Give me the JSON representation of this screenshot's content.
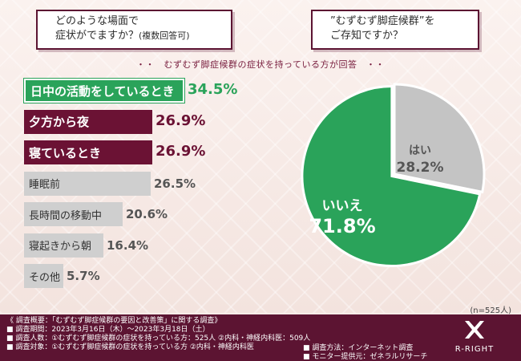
{
  "questions": {
    "q1_line1": "どのような場面で",
    "q1_line2": "症状がでますか？",
    "q1_note": "(複数回答可)",
    "q2_line1": "”むずむず脚症候群”を",
    "q2_line2": "ご存知ですか？"
  },
  "subtitle": "・・　むずむず脚症候群の症状を持っている方が回答　・・",
  "sample": "(n=525人)",
  "colors": {
    "accent": "#6b1234",
    "green": "#2aa35a",
    "gray": "#cfcfcf"
  },
  "chart_data": [
    {
      "type": "bar",
      "orientation": "horizontal",
      "categories": [
        "日中の活動をしているとき",
        "夕方から夜",
        "寝ているとき",
        "睡眠前",
        "長時間の移動中",
        "寝起きから朝",
        "その他"
      ],
      "values": [
        34.5,
        26.9,
        26.9,
        26.5,
        20.6,
        16.4,
        5.7
      ],
      "labels": [
        "34.5%",
        "26.9%",
        "26.9%",
        "26.5%",
        "20.6%",
        "16.4%",
        "5.7%"
      ],
      "styles": [
        "green",
        "dark",
        "dark",
        "gray",
        "gray",
        "gray",
        "gray"
      ]
    },
    {
      "type": "pie",
      "categories": [
        "はい",
        "いいえ"
      ],
      "values": [
        28.2,
        71.8
      ],
      "labels": [
        "28.2%",
        "71.8%"
      ],
      "colors": [
        "#c4c4c4",
        "#2aa35a"
      ]
    }
  ],
  "footer": {
    "line1": "《 調査概要：「むずむず脚症候群の要因と改善策」に関する調査》",
    "line2": "■ 調査期間：2023年3月16日（木）〜2023年3月18日（土）",
    "line3": "■ 調査人数：①むずむず脚症候群の症状を持っている方：525人 ②内科・神経内科医：509人",
    "line4": "■ 調査対象：①むずむず脚症候群の症状を持っている方 ②内科・神経内科医",
    "method": "■ 調査方法：インターネット調査",
    "monitor": "■ モニター提供元：ゼネラルリサーチ",
    "logo": "R-RIGHT"
  }
}
